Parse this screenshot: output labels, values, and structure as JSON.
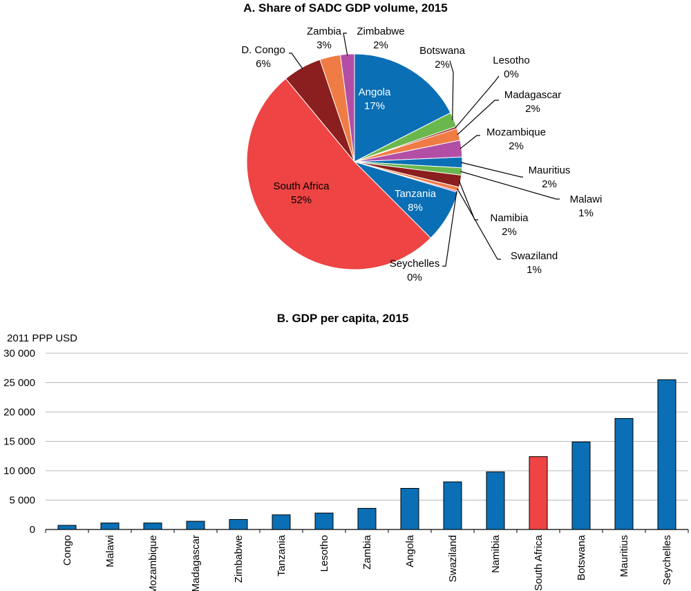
{
  "chart_data": [
    {
      "type": "pie",
      "title": "A. Share of SADC GDP volume, 2015",
      "slices": [
        {
          "label": "Angola",
          "pct_label": "17%",
          "value": 17.5,
          "color": "#0a6fb5",
          "inside": true
        },
        {
          "label": "Botswana",
          "pct_label": "2%",
          "value": 2.2,
          "color": "#6ab84d",
          "inside": false
        },
        {
          "label": "Lesotho",
          "pct_label": "0%",
          "value": 0.3,
          "color": "#8b1e1e",
          "inside": false
        },
        {
          "label": "Madagascar",
          "pct_label": "2%",
          "value": 1.8,
          "color": "#f07c45",
          "inside": false
        },
        {
          "label": "Mozambique",
          "pct_label": "2%",
          "value": 2.5,
          "color": "#b24ea6",
          "inside": false
        },
        {
          "label": "Mauritius",
          "pct_label": "2%",
          "value": 1.6,
          "color": "#0a6fb5",
          "inside": false
        },
        {
          "label": "Malawi",
          "pct_label": "1%",
          "value": 1.1,
          "color": "#6ab84d",
          "inside": false
        },
        {
          "label": "Namibia",
          "pct_label": "2%",
          "value": 1.8,
          "color": "#8b1e1e",
          "inside": false
        },
        {
          "label": "Swaziland",
          "pct_label": "1%",
          "value": 0.6,
          "color": "#f07c45",
          "inside": false
        },
        {
          "label": "Seychelles",
          "pct_label": "0%",
          "value": 0.2,
          "color": "#b24ea6",
          "inside": false
        },
        {
          "label": "Tanzania",
          "pct_label": "8%",
          "value": 7.9,
          "color": "#0a6fb5",
          "inside": true
        },
        {
          "label": "South Africa",
          "pct_label": "52%",
          "value": 51.5,
          "color": "#ee4444",
          "inside": true
        },
        {
          "label": "D. Congo",
          "pct_label": "6%",
          "value": 5.8,
          "color": "#8b1e1e",
          "inside": false
        },
        {
          "label": "Zambia",
          "pct_label": "3%",
          "value": 3.1,
          "color": "#f07c45",
          "inside": false
        },
        {
          "label": "Zimbabwe",
          "pct_label": "2%",
          "value": 2.1,
          "color": "#b24ea6",
          "inside": false
        }
      ]
    },
    {
      "type": "bar",
      "title": "B. GDP per capita,  2015",
      "ylabel": "2011 PPP USD",
      "ylim": [
        0,
        30000
      ],
      "yticks": [
        0,
        5000,
        10000,
        15000,
        20000,
        25000,
        30000
      ],
      "ytick_labels": [
        "0",
        "5 000",
        "10 000",
        "15 000",
        "20 000",
        "25 000",
        "30 000"
      ],
      "grid": true,
      "categories": [
        "Congo",
        "Malawi",
        "Mozambique",
        "Madagascar",
        "Zimbabwe",
        "Tanzania",
        "Lesotho",
        "Zambia",
        "Angola",
        "Swaziland",
        "Namibia",
        "South Africa",
        "Botswana",
        "Mauritius",
        "Seychelles"
      ],
      "values": [
        700,
        1100,
        1100,
        1400,
        1700,
        2500,
        2800,
        3600,
        7000,
        8100,
        9800,
        12400,
        14900,
        18900,
        25500
      ],
      "colors": {
        "default": "#0a6fb5",
        "highlight": "#ee4444",
        "highlight_category": "South Africa"
      }
    }
  ]
}
